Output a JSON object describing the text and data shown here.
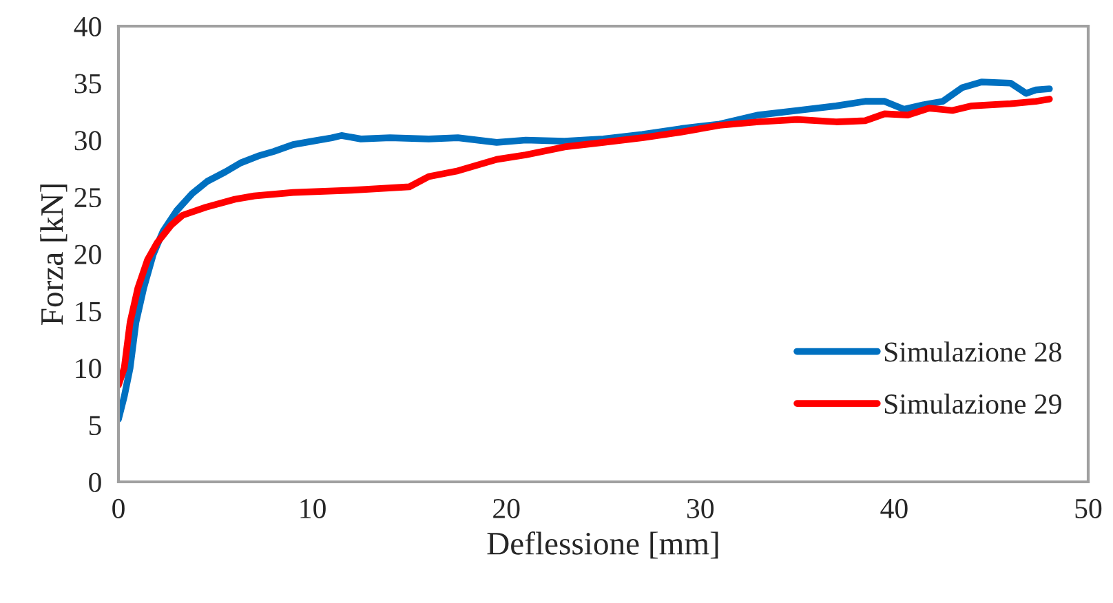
{
  "chart_data": {
    "type": "line",
    "xlabel": "Deflessione [mm]",
    "ylabel": "Forza [kN]",
    "xlim": [
      0,
      50
    ],
    "xticks": [
      0,
      10,
      20,
      30,
      40,
      50
    ],
    "ylim": [
      0,
      40
    ],
    "yticks": [
      0,
      5,
      10,
      15,
      20,
      25,
      30,
      35,
      40
    ],
    "grid": false,
    "legend": "bottom right",
    "marker": "none",
    "line_style": "solid",
    "series": [
      {
        "name": "Simulazione 28",
        "color": "#0070c0",
        "x": [
          0,
          0.3,
          0.6,
          0.9,
          1.3,
          1.8,
          2.3,
          3,
          3.8,
          4.6,
          5.5,
          6.3,
          7.2,
          8,
          9,
          10,
          11,
          11.5,
          12.5,
          14,
          16,
          17.5,
          19.5,
          21,
          23,
          25,
          27,
          29,
          31,
          33,
          35,
          37,
          38.5,
          39.5,
          40.5,
          41.5,
          42.5,
          43.5,
          44.5,
          46,
          46.8,
          47.3,
          48
        ],
        "values": [
          5.5,
          7.5,
          10,
          14,
          17,
          20,
          22,
          23.8,
          25.3,
          26.4,
          27.2,
          28,
          28.6,
          29,
          29.6,
          29.9,
          30.2,
          30.4,
          30.1,
          30.2,
          30.1,
          30.2,
          29.8,
          30,
          29.9,
          30.1,
          30.5,
          31,
          31.4,
          32.2,
          32.6,
          33,
          33.4,
          33.4,
          32.7,
          33.1,
          33.4,
          34.6,
          35.1,
          35,
          34.1,
          34.4,
          34.5
        ]
      },
      {
        "name": "Simulazione 29",
        "color": "#ff0000",
        "x": [
          0,
          0.3,
          0.6,
          1,
          1.5,
          2,
          2.7,
          3.3,
          4.5,
          6,
          7,
          9,
          12,
          15,
          16,
          17.5,
          19.5,
          21,
          23,
          25,
          27,
          29,
          31,
          33,
          35,
          37,
          38.5,
          39.5,
          40.7,
          41.8,
          43,
          44,
          46,
          47.3,
          48
        ],
        "values": [
          8.5,
          10,
          14,
          17,
          19.5,
          21,
          22.5,
          23.4,
          24.1,
          24.8,
          25.1,
          25.4,
          25.6,
          25.9,
          26.8,
          27.3,
          28.3,
          28.7,
          29.4,
          29.8,
          30.2,
          30.7,
          31.3,
          31.6,
          31.8,
          31.6,
          31.7,
          32.3,
          32.2,
          32.8,
          32.6,
          33,
          33.2,
          33.4,
          33.6
        ]
      }
    ]
  }
}
